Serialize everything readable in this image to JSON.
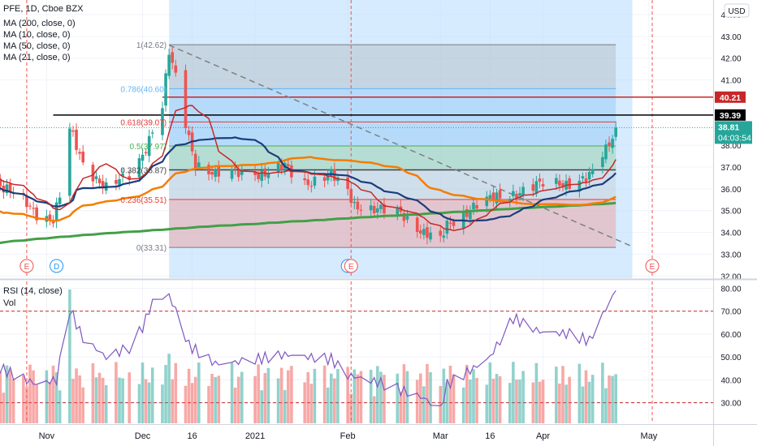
{
  "header": {
    "symbol_line": "PFE, 1D, Cboe BZX",
    "indicators": [
      "MA (200, close, 0)",
      "MA (10, close, 0)",
      "MA (50, close, 0)",
      "MA (21, close, 0)"
    ],
    "currency_button": "USD"
  },
  "rsi_panel": {
    "labels": [
      "RSI (14, close)",
      "Vol"
    ]
  },
  "price_tags": {
    "resistance": "40.21",
    "black_line": "39.39",
    "last_price": "38.81",
    "countdown": "04:03:54"
  },
  "fib_labels": [
    "1(42.62)",
    "0.786(40.60)",
    "0.618(39.07)",
    "0.5(37.97)",
    "0.382(36.87)",
    "0.236(35.51)",
    "0(33.31)"
  ],
  "event_markers": [
    {
      "label": "E",
      "date": "2020-10-27"
    },
    {
      "label": "D",
      "date": "2020-11-05"
    },
    {
      "label": "D",
      "date": "2021-02-01"
    },
    {
      "label": "E",
      "date": "2021-02-02"
    },
    {
      "label": "E",
      "date": "2021-05-04"
    }
  ],
  "colors": {
    "up": "#26a69a",
    "down": "#ef5350",
    "ma200": "#43a047",
    "ma10": "#c62828",
    "ma50": "#f57c00",
    "ma21": "#1a3d7c",
    "rsi": "#7e57c2",
    "highlight": "#bbdefb"
  },
  "chart_data": [
    {
      "type": "candlestick",
      "title": "PFE, 1D, Cboe BZX",
      "x_tick_labels": [
        "Nov",
        "Dec",
        "16",
        "2021",
        "Feb",
        "Mar",
        "16",
        "Apr",
        "May"
      ],
      "y_tick_labels": [
        "32.00",
        "33.00",
        "34.00",
        "35.00",
        "36.00",
        "37.00",
        "38.00",
        "41.00",
        "42.00",
        "43.00",
        "44.00"
      ],
      "ylim": [
        31.9,
        44.0
      ],
      "grid": true,
      "series": [
        {
          "name": "MA (200, close, 0)",
          "role": "ma200"
        },
        {
          "name": "MA (10, close, 0)",
          "role": "ma10"
        },
        {
          "name": "MA (50, close, 0)",
          "role": "ma50"
        },
        {
          "name": "MA (21, close, 0)",
          "role": "ma21"
        }
      ],
      "horizontal_lines": [
        {
          "value": 40.21,
          "role": "resistance"
        },
        {
          "value": 39.39,
          "role": "black_line"
        },
        {
          "value": 38.81,
          "role": "last_price"
        }
      ],
      "fib_retracement": {
        "start": "2020-12-09",
        "end": "2021-04-23",
        "levels": [
          {
            "ratio": 1,
            "price": 42.62
          },
          {
            "ratio": 0.786,
            "price": 40.6
          },
          {
            "ratio": 0.618,
            "price": 39.07
          },
          {
            "ratio": 0.5,
            "price": 37.97
          },
          {
            "ratio": 0.382,
            "price": 36.87
          },
          {
            "ratio": 0.236,
            "price": 35.51
          },
          {
            "ratio": 0,
            "price": 33.31
          }
        ]
      },
      "trendline": {
        "from": [
          "2020-12-09",
          42.6
        ],
        "to": [
          "2021-04-28",
          33.35
        ]
      },
      "highlight_band": {
        "from": "2020-12-09",
        "to": "2021-04-28"
      },
      "earnings_lines": [
        "2020-10-27",
        "2021-02-02",
        "2021-05-04"
      ],
      "anchors": [
        {
          "date": "2020-10-15",
          "close": 36.6
        },
        {
          "date": "2020-10-27",
          "close": 35.3
        },
        {
          "date": "2020-10-30",
          "close": 34.9
        },
        {
          "date": "2020-11-04",
          "close": 34.6
        },
        {
          "date": "2020-11-06",
          "close": 35.6
        },
        {
          "date": "2020-11-09",
          "close": 38.7
        },
        {
          "date": "2020-11-13",
          "close": 37.2
        },
        {
          "date": "2020-11-20",
          "close": 36.0
        },
        {
          "date": "2020-11-27",
          "close": 36.6
        },
        {
          "date": "2020-12-01",
          "close": 37.6
        },
        {
          "date": "2020-12-07",
          "close": 39.8
        },
        {
          "date": "2020-12-09",
          "close": 42.2
        },
        {
          "date": "2020-12-11",
          "close": 41.1
        },
        {
          "date": "2020-12-14",
          "close": 39.0
        },
        {
          "date": "2020-12-17",
          "close": 37.2
        },
        {
          "date": "2020-12-23",
          "close": 36.6
        },
        {
          "date": "2020-12-31",
          "close": 36.8
        },
        {
          "date": "2021-01-08",
          "close": 36.7
        },
        {
          "date": "2021-01-13",
          "close": 37.0
        },
        {
          "date": "2021-01-19",
          "close": 36.3
        },
        {
          "date": "2021-01-27",
          "close": 36.6
        },
        {
          "date": "2021-02-01",
          "close": 35.9
        },
        {
          "date": "2021-02-03",
          "close": 35.3
        },
        {
          "date": "2021-02-10",
          "close": 35.0
        },
        {
          "date": "2021-02-17",
          "close": 34.9
        },
        {
          "date": "2021-02-24",
          "close": 34.0
        },
        {
          "date": "2021-03-01",
          "close": 33.6
        },
        {
          "date": "2021-03-03",
          "close": 34.3
        },
        {
          "date": "2021-03-11",
          "close": 35.2
        },
        {
          "date": "2021-03-16",
          "close": 35.5
        },
        {
          "date": "2021-03-23",
          "close": 35.8
        },
        {
          "date": "2021-04-01",
          "close": 36.2
        },
        {
          "date": "2021-04-09",
          "close": 36.3
        },
        {
          "date": "2021-04-15",
          "close": 36.5
        },
        {
          "date": "2021-04-20",
          "close": 37.8
        },
        {
          "date": "2021-04-23",
          "close": 38.81
        }
      ]
    },
    {
      "type": "line",
      "title": "RSI (14, close)",
      "y_tick_labels": [
        "30.00",
        "40.00",
        "50.00",
        "60.00",
        "70.00",
        "80.00"
      ],
      "ylim": [
        21,
        83
      ],
      "bands": [
        30,
        70
      ],
      "secondary_series": "Vol",
      "rsi_anchors": [
        {
          "date": "2020-10-15",
          "value": 48
        },
        {
          "date": "2020-10-22",
          "value": 43
        },
        {
          "date": "2020-10-30",
          "value": 38
        },
        {
          "date": "2020-11-05",
          "value": 40
        },
        {
          "date": "2020-11-09",
          "value": 71
        },
        {
          "date": "2020-11-13",
          "value": 58
        },
        {
          "date": "2020-11-20",
          "value": 50
        },
        {
          "date": "2020-11-27",
          "value": 54
        },
        {
          "date": "2020-12-01",
          "value": 63
        },
        {
          "date": "2020-12-04",
          "value": 74
        },
        {
          "date": "2020-12-09",
          "value": 77
        },
        {
          "date": "2020-12-11",
          "value": 70
        },
        {
          "date": "2020-12-15",
          "value": 55
        },
        {
          "date": "2020-12-23",
          "value": 47
        },
        {
          "date": "2020-12-31",
          "value": 48
        },
        {
          "date": "2021-01-13",
          "value": 51
        },
        {
          "date": "2021-01-27",
          "value": 49
        },
        {
          "date": "2021-02-01",
          "value": 42
        },
        {
          "date": "2021-02-10",
          "value": 39
        },
        {
          "date": "2021-02-24",
          "value": 32
        },
        {
          "date": "2021-03-01",
          "value": 27
        },
        {
          "date": "2021-03-03",
          "value": 38
        },
        {
          "date": "2021-03-11",
          "value": 45
        },
        {
          "date": "2021-03-16",
          "value": 50
        },
        {
          "date": "2021-03-23",
          "value": 67
        },
        {
          "date": "2021-03-31",
          "value": 61
        },
        {
          "date": "2021-04-09",
          "value": 60
        },
        {
          "date": "2021-04-15",
          "value": 57
        },
        {
          "date": "2021-04-20",
          "value": 71
        },
        {
          "date": "2021-04-23",
          "value": 79
        }
      ],
      "volume_spikes": [
        {
          "date": "2020-11-09",
          "relative": 1.0
        },
        {
          "date": "2020-12-09",
          "relative": 0.52
        },
        {
          "date": "2020-12-11",
          "relative": 0.45
        }
      ]
    }
  ]
}
